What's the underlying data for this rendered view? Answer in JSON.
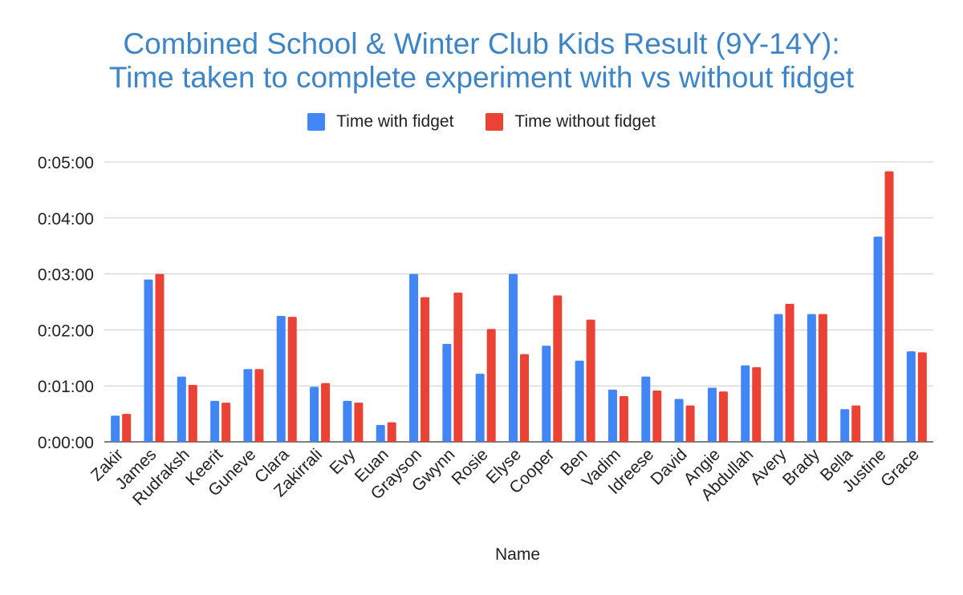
{
  "chart_data": {
    "type": "bar",
    "title_lines": [
      "Combined School & Winter Club Kids Result (9Y-14Y):",
      "Time taken to complete experiment with vs without fidget"
    ],
    "xlabel": "Name",
    "ylabel": "",
    "y_unit": "seconds",
    "y_ticks": [
      "0:00:00",
      "0:01:00",
      "0:02:00",
      "0:03:00",
      "0:04:00",
      "0:05:00"
    ],
    "ylim": [
      0,
      300
    ],
    "grid": true,
    "legend_position": "top-center",
    "categories": [
      "Zakir",
      "James",
      "Rudraksh",
      "Keerit",
      "Guneve",
      "Clara",
      "Zakirrali",
      "Evy",
      "Euan",
      "Grayson",
      "Gwynn",
      "Rosie",
      "Elyse",
      "Cooper",
      "Ben",
      "Vadim",
      "Idreese",
      "David",
      "Angie",
      "Abdullah",
      "Avery",
      "Brady",
      "Bella",
      "Justine",
      "Grace"
    ],
    "series": [
      {
        "name": "Time with fidget",
        "color": "#4285f4",
        "values": [
          28,
          174,
          70,
          44,
          78,
          135,
          59,
          44,
          18,
          180,
          105,
          73,
          180,
          103,
          87,
          56,
          70,
          46,
          58,
          82,
          137,
          137,
          35,
          220,
          97
        ]
      },
      {
        "name": "Time without fidget",
        "color": "#ea4335",
        "values": [
          30,
          180,
          61,
          42,
          78,
          134,
          63,
          42,
          21,
          155,
          160,
          121,
          94,
          157,
          131,
          49,
          55,
          39,
          54,
          80,
          148,
          137,
          39,
          290,
          96
        ]
      }
    ]
  }
}
